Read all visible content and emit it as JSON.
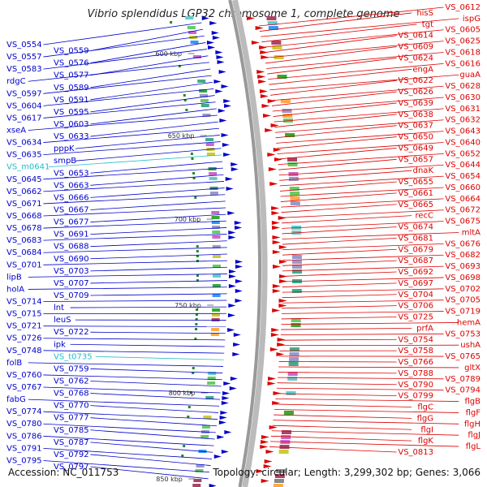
{
  "title": "Vibrio splendidus LGP32 chromosome 1, complete genome",
  "footer": {
    "accession": "Accession: NC_011753",
    "summary": "Topology: circular; Length: 3,299,302 bp; Genes: 3,066"
  },
  "colors": {
    "minus_strand": "#0000cc",
    "plus_strand": "#dd0000",
    "rna": "#22bbcc",
    "backbone": "#999999"
  },
  "ticks": [
    "600 kbp",
    "650 kbp",
    "700 kbp",
    "750 kbp",
    "800 kbp",
    "850 kbp"
  ],
  "left_labels": [
    "VS_0554",
    "VS_0559",
    "VS_0557",
    "VS_0576",
    "VS_0583",
    "VS_0577",
    "rdgC",
    "VS_0589",
    "VS_0597",
    "VS_0591",
    "VS_0604",
    "VS_0595",
    "VS_0617",
    "VS_0603",
    "xseA",
    "VS_0633",
    "VS_0634",
    "pppK",
    "VS_0635",
    "smpB",
    "VS_m0641",
    "VS_0653",
    "VS_0645",
    "VS_0663",
    "VS_0662",
    "VS_0666",
    "VS_0671",
    "VS_0667",
    "VS_0668",
    "VS_0677",
    "VS_0678",
    "VS_0691",
    "VS_0683",
    "VS_0688",
    "VS_0684",
    "VS_0690",
    "VS_0701",
    "VS_0703",
    "lipB",
    "VS_0707",
    "holA",
    "VS_0709",
    "VS_0714",
    "lnt",
    "VS_0715",
    "leuS",
    "VS_0721",
    "VS_0722",
    "VS_0726",
    "ipk",
    "VS_0748",
    "VS_t0735",
    "folB",
    "VS_0759",
    "VS_0760",
    "VS_0762",
    "VS_0767",
    "VS_0768",
    "fabG",
    "VS_0770",
    "VS_0774",
    "VS_0777",
    "VS_0780",
    "VS_0785",
    "VS_0786",
    "VS_0787",
    "VS_0791",
    "VS_0792",
    "VS_0795",
    "VS_0797"
  ],
  "right_labels": [
    "VS_0612",
    "hisS",
    "ispG",
    "tgt",
    "VS_0605",
    "VS_0614",
    "VS_0625",
    "VS_0609",
    "VS_0618",
    "VS_0624",
    "VS_0616",
    "engA",
    "guaA",
    "VS_0622",
    "VS_0628",
    "VS_0626",
    "VS_0630",
    "VS_0639",
    "VS_0631",
    "VS_0638",
    "VS_0632",
    "VS_0637",
    "VS_0643",
    "VS_0650",
    "VS_0640",
    "VS_0649",
    "VS_0652",
    "VS_0657",
    "VS_0644",
    "dnaK",
    "VS_0654",
    "VS_0655",
    "VS_0660",
    "VS_0661",
    "VS_0664",
    "VS_0665",
    "VS_0672",
    "recC",
    "VS_0675",
    "VS_0674",
    "mltA",
    "VS_0681",
    "VS_0676",
    "VS_0679",
    "VS_0682",
    "VS_0687",
    "VS_0693",
    "VS_0692",
    "VS_0698",
    "VS_0697",
    "VS_0702",
    "VS_0704",
    "VS_0705",
    "VS_0706",
    "VS_0719",
    "VS_0725",
    "hemA",
    "prfA",
    "VS_0753",
    "VS_0754",
    "ushA",
    "VS_0758",
    "VS_0765",
    "VS_0766",
    "gltX",
    "VS_0788",
    "VS_0789",
    "VS_0790",
    "VS_0794",
    "VS_0799",
    "flgB",
    "flgC",
    "flgF",
    "flgG",
    "flgH",
    "flgI",
    "flgJ",
    "flgK",
    "flgL",
    "VS_0813"
  ]
}
